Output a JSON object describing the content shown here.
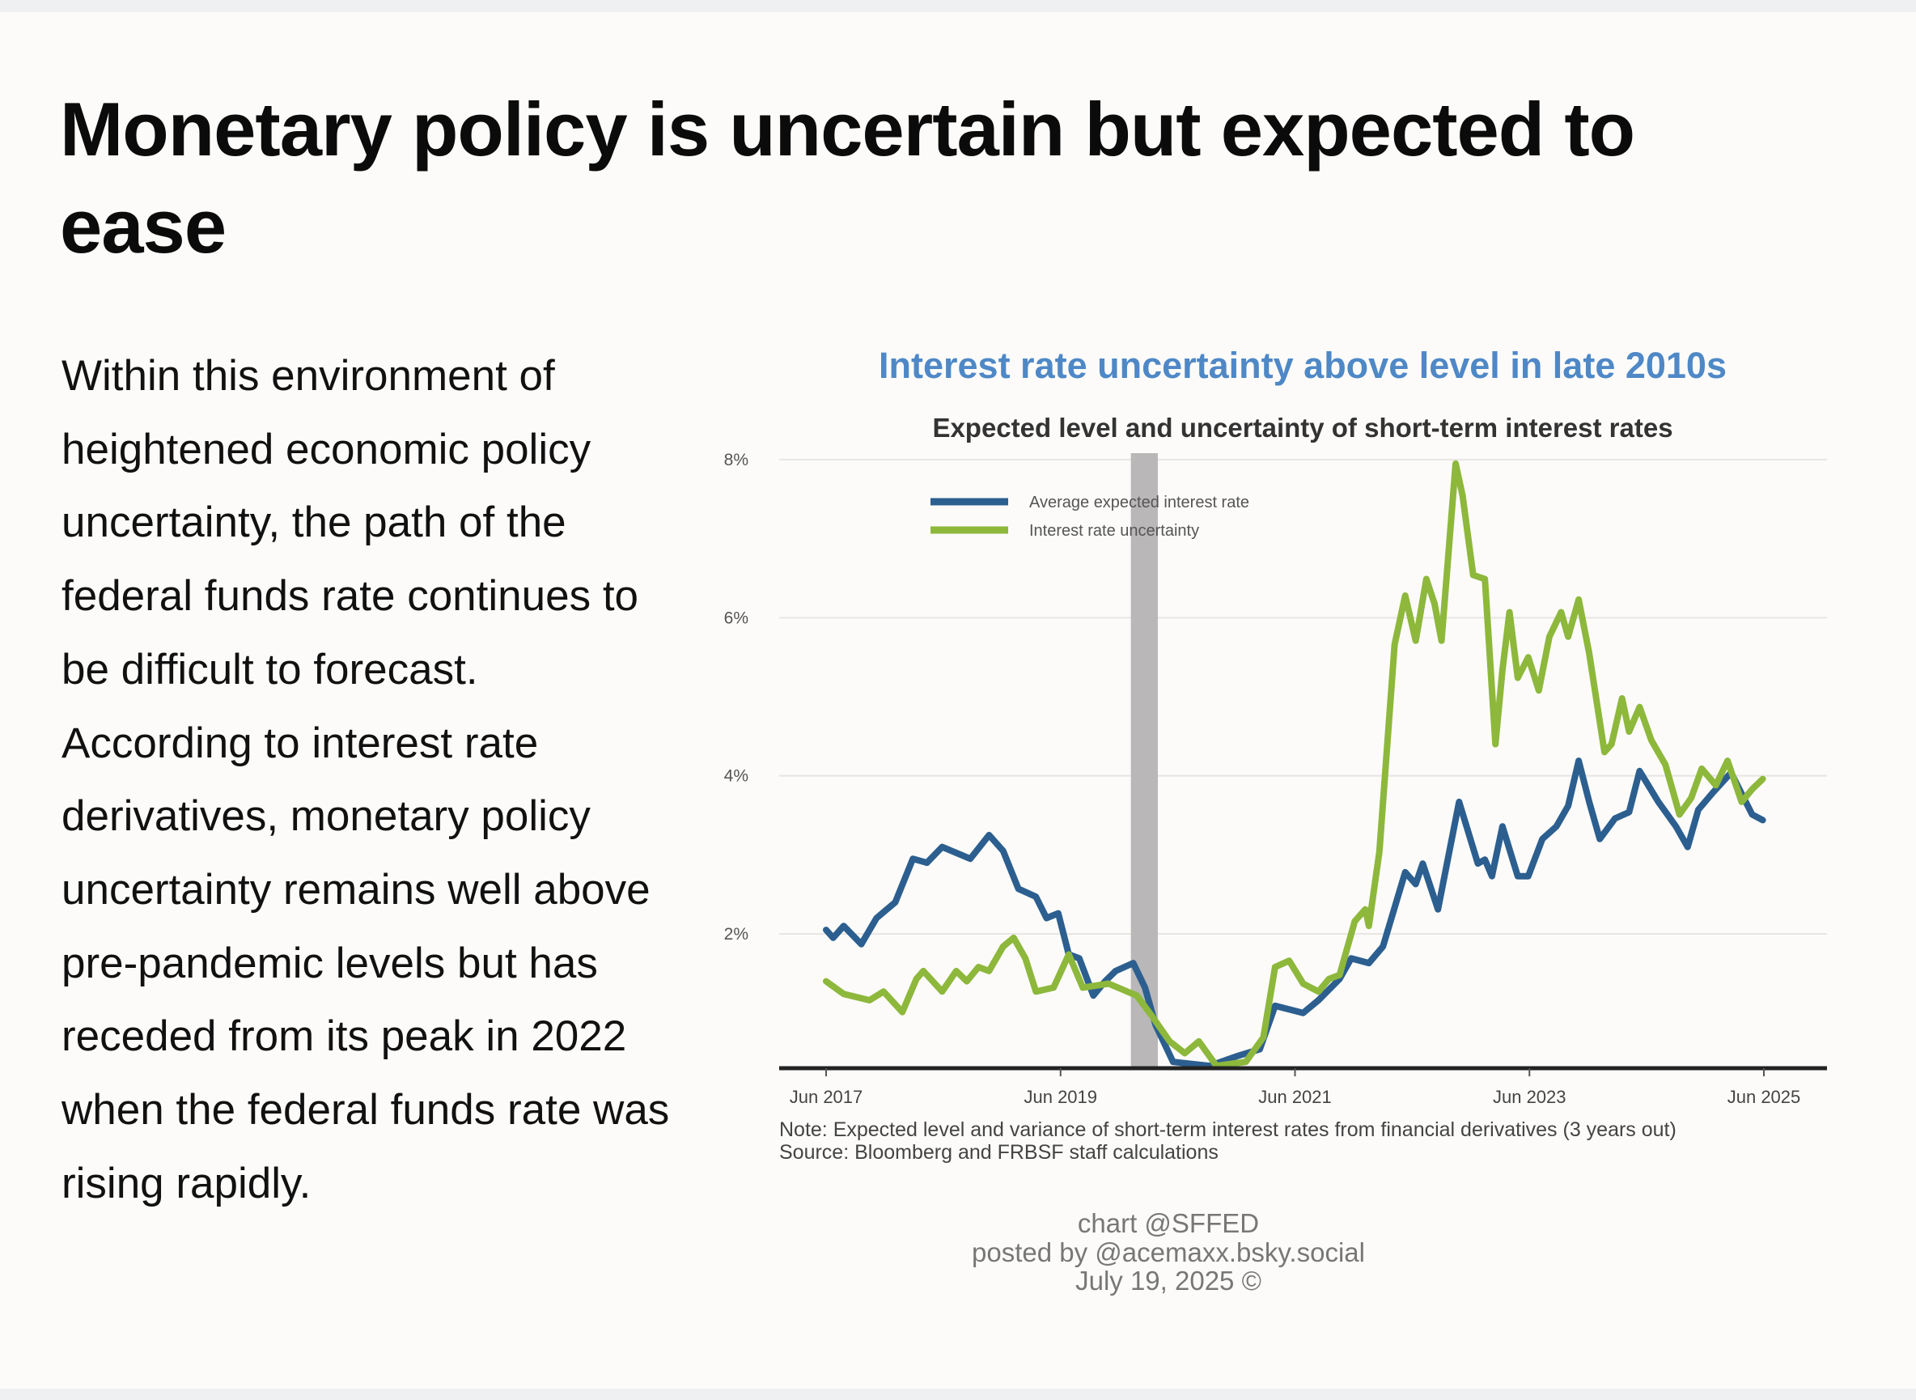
{
  "article": {
    "title": "Monetary policy is uncertain but expected to ease",
    "body": "Within this environment of heightened economic policy uncertainty, the path of the federal funds rate continues to be difficult to forecast. According to interest rate derivatives, monetary policy uncertainty remains well above pre-pandemic levels but has receded from its peak in 2022 when the federal funds rate was rising rapidly."
  },
  "chart_data": {
    "type": "line",
    "title": "Interest rate uncertainty above level in late 2010s",
    "subtitle": "Expected level and uncertainty of short-term interest rates",
    "xlabel": "",
    "ylabel": "",
    "xlim": [
      2017.5,
      2025.5
    ],
    "ylim": [
      0.3,
      8
    ],
    "grid": true,
    "legend_position": "top-left",
    "x_ticks": [
      {
        "value": 2017.5,
        "label": "Jun 2017"
      },
      {
        "value": 2019.5,
        "label": "Jun 2019"
      },
      {
        "value": 2021.5,
        "label": "Jun 2021"
      },
      {
        "value": 2023.5,
        "label": "Jun 2023"
      },
      {
        "value": 2025.5,
        "label": "Jun 2025"
      }
    ],
    "y_ticks": [
      {
        "value": 2,
        "label": "2%"
      },
      {
        "value": 4,
        "label": "4%"
      },
      {
        "value": 6,
        "label": "6%"
      },
      {
        "value": 8,
        "label": "8%"
      }
    ],
    "shaded_period": {
      "start": 2020.1,
      "end": 2020.33,
      "color": "#b9b7b7"
    },
    "series": [
      {
        "name": "Average expected interest rate",
        "color": "#2c5f8f",
        "x": [
          2017.5,
          2017.56,
          2017.65,
          2017.8,
          2017.93,
          2018.09,
          2018.24,
          2018.36,
          2018.49,
          2018.73,
          2018.89,
          2019.01,
          2019.14,
          2019.29,
          2019.38,
          2019.48,
          2019.57,
          2019.66,
          2019.78,
          2019.88,
          2019.97,
          2020.12,
          2020.22,
          2020.31,
          2020.46,
          2020.77,
          2021.02,
          2021.2,
          2021.33,
          2021.57,
          2021.7,
          2021.88,
          2021.98,
          2022.13,
          2022.25,
          2022.44,
          2022.53,
          2022.59,
          2022.72,
          2022.9,
          2023.06,
          2023.12,
          2023.18,
          2023.27,
          2023.4,
          2023.49,
          2023.61,
          2023.73,
          2023.83,
          2023.92,
          2024.01,
          2024.1,
          2024.23,
          2024.35,
          2024.44,
          2024.6,
          2024.75,
          2024.85,
          2024.94,
          2025.06,
          2025.22,
          2025.4,
          2025.49
        ],
        "y": [
          2.05,
          1.95,
          2.1,
          1.87,
          2.2,
          2.4,
          2.95,
          2.9,
          3.1,
          2.95,
          3.25,
          3.05,
          2.57,
          2.47,
          2.2,
          2.26,
          1.74,
          1.69,
          1.22,
          1.4,
          1.53,
          1.63,
          1.32,
          0.85,
          0.38,
          0.33,
          0.46,
          0.54,
          1.09,
          1.0,
          1.16,
          1.43,
          1.69,
          1.63,
          1.84,
          2.78,
          2.63,
          2.89,
          2.31,
          3.67,
          2.89,
          2.94,
          2.73,
          3.36,
          2.73,
          2.73,
          3.2,
          3.36,
          3.62,
          4.19,
          3.67,
          3.2,
          3.46,
          3.54,
          4.06,
          3.67,
          3.36,
          3.1,
          3.57,
          3.78,
          4.04,
          3.51,
          3.44
        ]
      },
      {
        "name": "Interest rate uncertainty",
        "color": "#8db83c",
        "x": [
          2017.5,
          2017.65,
          2017.87,
          2017.99,
          2018.15,
          2018.27,
          2018.33,
          2018.49,
          2018.61,
          2018.7,
          2018.8,
          2018.89,
          2019.01,
          2019.1,
          2019.2,
          2019.29,
          2019.44,
          2019.57,
          2019.69,
          2019.91,
          2020.15,
          2020.28,
          2020.43,
          2020.56,
          2020.68,
          2020.83,
          2021.08,
          2021.23,
          2021.33,
          2021.45,
          2021.57,
          2021.7,
          2021.79,
          2021.88,
          2022.01,
          2022.1,
          2022.13,
          2022.22,
          2022.35,
          2022.44,
          2022.53,
          2022.62,
          2022.69,
          2022.75,
          2022.87,
          2022.93,
          2023.02,
          2023.12,
          2023.21,
          2023.27,
          2023.33,
          2023.4,
          2023.49,
          2023.58,
          2023.67,
          2023.77,
          2023.83,
          2023.92,
          2024.01,
          2024.14,
          2024.2,
          2024.29,
          2024.35,
          2024.44,
          2024.54,
          2024.66,
          2024.78,
          2024.88,
          2024.97,
          2025.09,
          2025.19,
          2025.31,
          2025.4,
          2025.49
        ],
        "y": [
          1.4,
          1.24,
          1.16,
          1.27,
          1.01,
          1.43,
          1.53,
          1.27,
          1.53,
          1.4,
          1.58,
          1.53,
          1.84,
          1.95,
          1.69,
          1.27,
          1.32,
          1.74,
          1.32,
          1.37,
          1.22,
          0.96,
          0.64,
          0.49,
          0.64,
          0.33,
          0.38,
          0.69,
          1.58,
          1.66,
          1.37,
          1.27,
          1.43,
          1.48,
          2.16,
          2.31,
          2.1,
          3.04,
          5.66,
          6.28,
          5.71,
          6.49,
          6.18,
          5.71,
          7.95,
          7.54,
          6.54,
          6.49,
          4.4,
          5.34,
          6.07,
          5.24,
          5.5,
          5.08,
          5.76,
          6.07,
          5.76,
          6.23,
          5.55,
          4.3,
          4.4,
          4.98,
          4.56,
          4.87,
          4.45,
          4.14,
          3.51,
          3.72,
          4.09,
          3.88,
          4.19,
          3.67,
          3.83,
          3.96
        ]
      }
    ],
    "note": "Note: Expected level and variance of short-term interest rates from financial derivatives (3 years out)",
    "source": "Source: Bloomberg and FRBSF staff calculations",
    "credits": [
      "chart @SFFED",
      "posted by @acemaxx.bsky.social",
      "July 19, 2025 ©"
    ]
  }
}
